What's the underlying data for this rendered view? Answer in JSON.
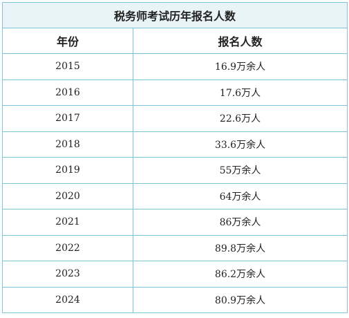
{
  "table": {
    "title": "税务师考试历年报名人数",
    "headers": [
      "年份",
      "报名人数"
    ],
    "rows": [
      {
        "year": "2015",
        "count": "16.9万余人"
      },
      {
        "year": "2016",
        "count": "17.6万人"
      },
      {
        "year": "2017",
        "count": "22.6万人"
      },
      {
        "year": "2018",
        "count": "33.6万余人"
      },
      {
        "year": "2019",
        "count": "55万余人"
      },
      {
        "year": "2020",
        "count": "64万余人"
      },
      {
        "year": "2021",
        "count": "86万余人"
      },
      {
        "year": "2022",
        "count": "89.8万余人"
      },
      {
        "year": "2023",
        "count": "86.2万余人"
      },
      {
        "year": "2024",
        "count": "80.9万余人"
      }
    ]
  },
  "colors": {
    "border": "#7cc2d8",
    "title_background": "#e9f4f8",
    "text": "#222222"
  }
}
